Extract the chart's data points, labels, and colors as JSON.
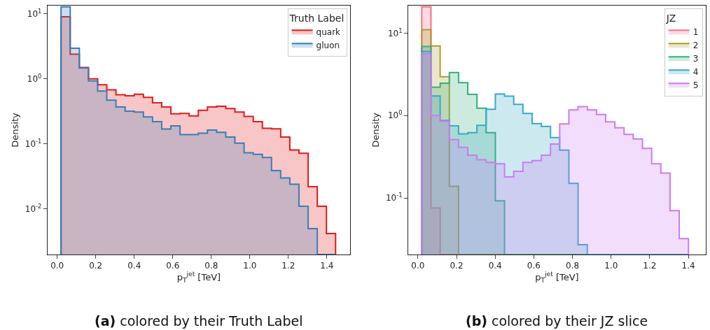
{
  "chart_data": [
    {
      "type": "histogram",
      "title": "(a) colored by their Truth Label",
      "xlabel": "p$_{T}$$^{jet}$ [TeV]",
      "ylabel": "Density",
      "legend_title": "Truth Label",
      "legend": "top right",
      "log": "y",
      "bins": [
        0.02,
        0.0675,
        0.115,
        0.1625,
        0.21,
        0.2575,
        0.305,
        0.3525,
        0.4,
        0.4475,
        0.495,
        0.5425,
        0.59,
        0.6375,
        0.685,
        0.7325,
        0.78,
        0.8275,
        0.875,
        0.9225,
        0.97,
        1.0175,
        1.065,
        1.1125,
        1.16,
        1.2075,
        1.255,
        1.3025,
        1.35,
        1.3975,
        1.445
      ],
      "xlim": [
        -0.05,
        1.52
      ],
      "ylim": [
        0.002,
        13.4
      ],
      "xticks": [
        {
          "value": 0,
          "label": "0.0"
        },
        {
          "value": 0.2,
          "label": "0.2"
        },
        {
          "value": 0.4,
          "label": "0.4"
        },
        {
          "value": 0.6,
          "label": "0.6"
        },
        {
          "value": 0.8,
          "label": "0.8"
        },
        {
          "value": 1,
          "label": "1.0"
        },
        {
          "value": 1.2,
          "label": "1.2"
        },
        {
          "value": 1.4,
          "label": "1.4"
        }
      ],
      "yticks": [
        {
          "value": 0.01,
          "label": "10$^{-2}$"
        },
        {
          "value": 0.1,
          "label": "10$^{-1}$"
        },
        {
          "value": 1,
          "label": "10$^{0}$"
        },
        {
          "value": 10,
          "label": "10$^{1}$"
        }
      ],
      "series": [
        {
          "name": "quark",
          "color": "#e41a1c",
          "values": [
            9.0,
            2.4,
            1.5,
            1.0,
            0.81,
            0.68,
            0.57,
            0.55,
            0.58,
            0.52,
            0.43,
            0.37,
            0.29,
            0.295,
            0.27,
            0.33,
            0.37,
            0.38,
            0.35,
            0.31,
            0.265,
            0.22,
            0.174,
            0.171,
            0.128,
            0.081,
            0.072,
            0.022,
            0.011,
            0.0042
          ]
        },
        {
          "name": "gluon",
          "color": "#377eb8",
          "values": [
            12.8,
            2.97,
            1.47,
            0.93,
            0.65,
            0.47,
            0.37,
            0.32,
            0.31,
            0.26,
            0.22,
            0.17,
            0.19,
            0.139,
            0.139,
            0.146,
            0.164,
            0.151,
            0.128,
            0.103,
            0.073,
            0.069,
            0.062,
            0.039,
            0.03,
            0.024,
            0.011,
            0.005,
            null,
            null
          ]
        }
      ]
    },
    {
      "type": "histogram",
      "title": "(b) colored by their JZ slice",
      "xlabel": "p$_{T}$$^{jet}$ [TeV]",
      "ylabel": "Density",
      "legend_title": "JZ",
      "legend": "top right",
      "log": "y",
      "bins": [
        0.02,
        0.0676,
        0.1152,
        0.1628,
        0.2104,
        0.258,
        0.3056,
        0.3532,
        0.4008,
        0.4484,
        0.496,
        0.5436,
        0.5912,
        0.6388,
        0.6864,
        0.734,
        0.7816,
        0.8292,
        0.8768,
        0.9244,
        0.972,
        1.0196,
        1.0672,
        1.1148,
        1.1624,
        1.21,
        1.2576,
        1.3052,
        1.3528,
        1.4004
      ],
      "xlim": [
        -0.05,
        1.49
      ],
      "ylim": [
        0.0206,
        21.6
      ],
      "xticks": [
        {
          "value": 0,
          "label": "0.0"
        },
        {
          "value": 0.2,
          "label": "0.2"
        },
        {
          "value": 0.4,
          "label": "0.4"
        },
        {
          "value": 0.6,
          "label": "0.6"
        },
        {
          "value": 0.8,
          "label": "0.8"
        },
        {
          "value": 1,
          "label": "1.0"
        },
        {
          "value": 1.2,
          "label": "1.2"
        },
        {
          "value": 1.4,
          "label": "1.4"
        }
      ],
      "yticks": [
        {
          "value": 0.1,
          "label": "10$^{-1}$"
        },
        {
          "value": 1,
          "label": "10$^{0}$"
        },
        {
          "value": 10,
          "label": "10$^{1}$"
        }
      ],
      "series": [
        {
          "name": "1",
          "color": "#f77189",
          "values": [
            20.9,
            0.0755,
            null,
            null,
            null,
            null,
            null,
            null,
            null,
            null,
            null,
            null,
            null,
            null,
            null,
            null,
            null,
            null,
            null,
            null,
            null,
            null,
            null,
            null,
            null,
            null,
            null,
            null,
            null
          ]
        },
        {
          "name": "2",
          "color": "#ae9d31",
          "values": [
            11.0,
            7.0,
            2.96,
            0.138,
            null,
            null,
            null,
            null,
            null,
            null,
            null,
            null,
            null,
            null,
            null,
            null,
            null,
            null,
            null,
            null,
            null,
            null,
            null,
            null,
            null,
            null,
            null,
            null,
            null
          ]
        },
        {
          "name": "3",
          "color": "#33b07a",
          "values": [
            6.9,
            2.21,
            2.47,
            3.33,
            2.51,
            1.81,
            1.23,
            0.62,
            0.092,
            null,
            null,
            null,
            null,
            null,
            null,
            null,
            null,
            null,
            null,
            null,
            null,
            null,
            null,
            null,
            null,
            null,
            null,
            null,
            null
          ]
        },
        {
          "name": "4",
          "color": "#38a9c5",
          "values": [
            6.0,
            1.73,
            0.87,
            0.75,
            0.6,
            0.62,
            0.76,
            1.19,
            1.82,
            1.72,
            1.37,
            1.06,
            0.8,
            0.74,
            0.54,
            0.38,
            0.15,
            0.027,
            null,
            null,
            null,
            null,
            null,
            null,
            null,
            null,
            null,
            null,
            null
          ]
        },
        {
          "name": "5",
          "color": "#cc7af4",
          "values": [
            5.6,
            1.0,
            0.85,
            0.51,
            0.41,
            0.33,
            0.29,
            0.27,
            0.26,
            0.18,
            0.21,
            0.27,
            0.284,
            0.33,
            0.45,
            0.79,
            1.17,
            1.28,
            1.17,
            1.03,
            0.84,
            0.71,
            0.59,
            0.52,
            0.4,
            0.26,
            0.2,
            0.07,
            0.032
          ]
        }
      ]
    }
  ]
}
